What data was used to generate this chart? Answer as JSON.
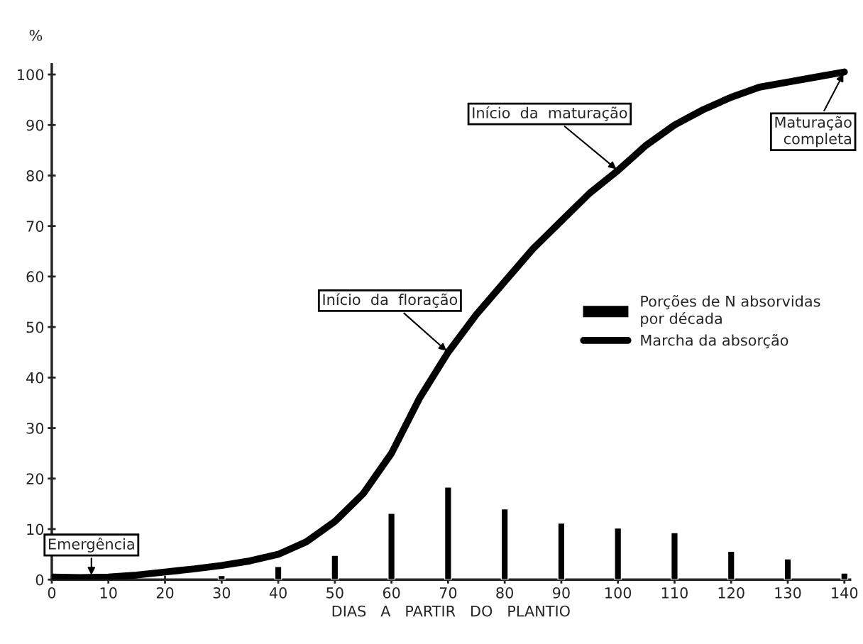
{
  "chart_data": {
    "type": "bar",
    "xlabel": "DIAS   A   PARTIR   DO   PLANTIO",
    "ylabel": "%",
    "xlim": [
      0,
      141
    ],
    "ylim": [
      0,
      102
    ],
    "xticks": [
      0,
      10,
      20,
      30,
      40,
      50,
      60,
      70,
      80,
      90,
      100,
      110,
      120,
      130,
      140
    ],
    "yticks": [
      0,
      10,
      20,
      30,
      40,
      50,
      60,
      70,
      80,
      90,
      100
    ],
    "grid": false,
    "legend": "center right",
    "series": [
      {
        "name": "Porções de N absorvidas\npor década",
        "color": "#000000",
        "x": [
          30,
          40,
          50,
          60,
          70,
          80,
          90,
          100,
          110,
          120,
          130,
          140
        ],
        "values": [
          0.8,
          2.6,
          4.8,
          13.1,
          18.3,
          14,
          11.2,
          10.2,
          9.3,
          5.6,
          4.1,
          1.3
        ]
      },
      {
        "name": "Marcha da absorção",
        "type": "line",
        "color": "#000000",
        "x": [
          0,
          5,
          10,
          15,
          20,
          25,
          30,
          35,
          40,
          45,
          50,
          55,
          60,
          65,
          70,
          75,
          80,
          85,
          90,
          95,
          100,
          105,
          110,
          115,
          120,
          125,
          130,
          135,
          140
        ],
        "values": [
          0.5,
          0.4,
          0.5,
          0.9,
          1.5,
          2.1,
          2.8,
          3.7,
          5,
          7.5,
          11.5,
          17,
          25,
          36,
          45,
          52.5,
          59,
          65.5,
          71,
          76.5,
          81,
          86,
          90,
          93,
          95.5,
          97.5,
          98.5,
          99.5,
          100.5
        ]
      }
    ],
    "annotations": [
      {
        "text": "Emergência",
        "x": 7,
        "y": 0.5
      },
      {
        "text": "Início  da  floração",
        "x": 70,
        "y": 45
      },
      {
        "text": "Início  da  maturação",
        "x": 100,
        "y": 81
      },
      {
        "text": "Maturação\ncompleta",
        "x": 140,
        "y": 100.5
      }
    ]
  }
}
